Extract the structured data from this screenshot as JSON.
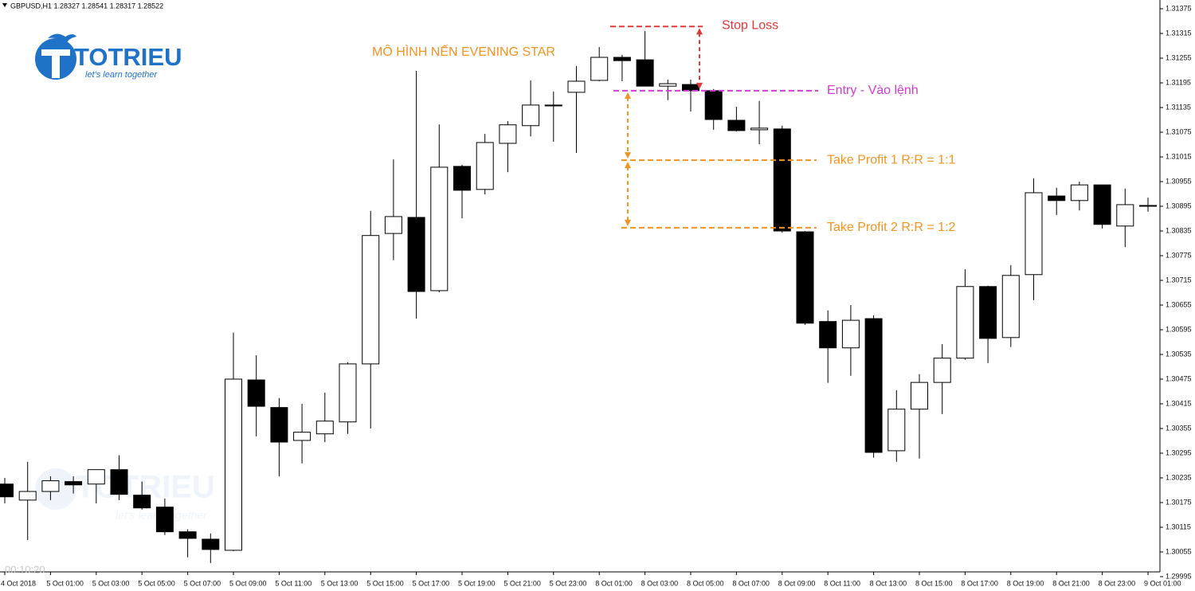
{
  "chart_data": {
    "type": "candlestick",
    "title": "GBPUSD,H1  1.28327 1.28541 1.28317 1.28522",
    "pattern_label": "MÔ HÌNH NẾN EVENING STAR",
    "logo": {
      "name": "TOTRIEU",
      "tagline": "let's learn together"
    },
    "timer": "00:10:20",
    "up_color": "#ffffff",
    "down_color": "#000000",
    "categories": [
      "4 Oct 2018",
      null,
      "5 Oct 01:00",
      null,
      "5 Oct 03:00",
      null,
      "5 Oct 05:00",
      null,
      "5 Oct 07:00",
      null,
      "5 Oct 09:00",
      null,
      "5 Oct 11:00",
      null,
      "5 Oct 13:00",
      null,
      "5 Oct 15:00",
      null,
      "5 Oct 17:00",
      null,
      "5 Oct 19:00",
      null,
      "5 Oct 21:00",
      null,
      "5 Oct 23:00",
      null,
      "8 Oct 01:00",
      null,
      "8 Oct 03:00",
      null,
      "8 Oct 05:00",
      null,
      "8 Oct 07:00",
      null,
      "8 Oct 09:00",
      null,
      "8 Oct 11:00",
      null,
      "8 Oct 13:00",
      null,
      "8 Oct 15:00",
      null,
      "8 Oct 17:00",
      null,
      "8 Oct 19:00",
      null,
      "8 Oct 21:00",
      null,
      "8 Oct 23:00",
      null,
      "9 Oct 01:00"
    ],
    "open": [
      1.3022,
      1.30181,
      1.30202,
      1.30226,
      1.3022,
      1.30255,
      1.30193,
      1.30164,
      1.30104,
      1.30086,
      1.30059,
      1.30473,
      1.30406,
      1.30326,
      1.30342,
      1.30371,
      1.30512,
      1.30829,
      1.30868,
      1.3069,
      1.30992,
      1.30936,
      1.31048,
      1.31091,
      1.31139,
      1.31172,
      1.31201,
      1.31257,
      1.31251,
      1.31187,
      1.31191,
      1.31176,
      1.31104,
      1.31081,
      1.31083,
      1.30833,
      1.30615,
      1.30551,
      1.30622,
      1.30301,
      1.30402,
      1.30467,
      1.30526,
      1.307,
      1.30576,
      1.30729,
      1.3092,
      1.30909,
      1.30947,
      1.30847,
      1.30897
    ],
    "high": [
      1.30235,
      1.30274,
      1.30239,
      1.30239,
      1.30255,
      1.3029,
      1.30226,
      1.30185,
      1.3011,
      1.301,
      1.30588,
      1.30533,
      1.30429,
      1.30415,
      1.30442,
      1.30516,
      1.30884,
      1.31009,
      1.31224,
      1.31094,
      1.30996,
      1.31071,
      1.31102,
      1.31201,
      1.31174,
      1.31236,
      1.31282,
      1.31263,
      1.31321,
      1.31203,
      1.31203,
      1.3118,
      1.31137,
      1.31151,
      1.31091,
      1.30835,
      1.30642,
      1.30655,
      1.3063,
      1.30448,
      1.30487,
      1.3056,
      1.30742,
      1.30702,
      1.30752,
      1.30963,
      1.3094,
      1.30955,
      1.30947,
      1.30938,
      1.30916
    ],
    "low": [
      1.30173,
      1.30084,
      1.30181,
      1.30197,
      1.30173,
      1.30181,
      1.30158,
      1.30096,
      1.30042,
      1.30028,
      1.30057,
      1.30336,
      1.30239,
      1.3027,
      1.30322,
      1.30342,
      1.30355,
      1.30764,
      1.30622,
      1.30686,
      1.30866,
      1.30924,
      1.30978,
      1.31065,
      1.31052,
      1.31025,
      1.31199,
      1.31199,
      1.31187,
      1.31153,
      1.31125,
      1.31081,
      1.31077,
      1.31046,
      1.30831,
      1.30607,
      1.30466,
      1.30483,
      1.30284,
      1.30274,
      1.30282,
      1.3039,
      1.30522,
      1.30514,
      1.30553,
      1.30667,
      1.30874,
      1.30885,
      1.30841,
      1.30796,
      1.30882
    ],
    "close": [
      1.30189,
      1.30202,
      1.30228,
      1.30218,
      1.30255,
      1.30195,
      1.30162,
      1.30104,
      1.30088,
      1.30061,
      1.30475,
      1.30409,
      1.30322,
      1.30346,
      1.30373,
      1.30512,
      1.30824,
      1.3087,
      1.30688,
      1.3099,
      1.30934,
      1.3105,
      1.31093,
      1.31141,
      1.31141,
      1.31199,
      1.31257,
      1.31249,
      1.31187,
      1.31193,
      1.31176,
      1.31106,
      1.31079,
      1.31085,
      1.30835,
      1.30611,
      1.30551,
      1.30618,
      1.30297,
      1.30402,
      1.30467,
      1.30526,
      1.307,
      1.30574,
      1.30727,
      1.30928,
      1.30909,
      1.30947,
      1.30851,
      1.30899,
      1.30897
    ],
    "annotations": [
      {
        "text": "Stop Loss",
        "value": 1.31332,
        "color": "#e53935"
      },
      {
        "text": "Entry - Vào lệnh",
        "value": 1.31176,
        "color": "#d63ad6"
      },
      {
        "text": "Take Profit 1 R:R = 1:1",
        "value": 1.31007,
        "color": "#f39422"
      },
      {
        "text": "Take Profit 2 R:R = 1:2",
        "value": 1.30843,
        "color": "#f39422"
      }
    ],
    "ylim": [
      1.29975,
      1.31395
    ],
    "yticks": [
      1.29995,
      1.30055,
      1.30115,
      1.30175,
      1.30235,
      1.30295,
      1.30355,
      1.30415,
      1.30475,
      1.30535,
      1.30595,
      1.30655,
      1.30715,
      1.30775,
      1.30835,
      1.30895,
      1.30955,
      1.31015,
      1.31075,
      1.31135,
      1.31195,
      1.31255,
      1.31315,
      1.31375
    ],
    "grid": false
  }
}
